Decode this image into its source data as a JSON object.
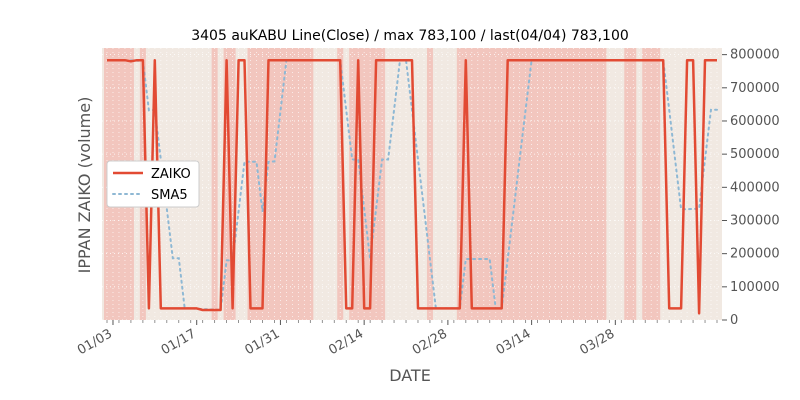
{
  "chart_data": {
    "type": "line",
    "title": "3405 auKABU Line(Close) / max 783,100 / last(04/04) 783,100",
    "xlabel": "DATE",
    "ylabel": "IPPAN ZAIKO (volume)",
    "ylim": [
      0,
      820000
    ],
    "yticks": [
      {
        "value": 0,
        "label": "0"
      },
      {
        "value": 100000,
        "label": "100000"
      },
      {
        "value": 200000,
        "label": "200000"
      },
      {
        "value": 300000,
        "label": "300000"
      },
      {
        "value": 400000,
        "label": "400000"
      },
      {
        "value": 500000,
        "label": "500000"
      },
      {
        "value": 600000,
        "label": "600000"
      },
      {
        "value": 700000,
        "label": "700000"
      },
      {
        "value": 800000,
        "label": "800000"
      }
    ],
    "xticks": [
      "01/03",
      "01/17",
      "01/31",
      "02/14",
      "02/28",
      "03/14",
      "03/28"
    ],
    "legend": {
      "placement": "left",
      "entries": [
        "ZAIKO",
        "SMA5"
      ]
    },
    "colors": {
      "zaiko": "#e24a33",
      "sma5": "#8eb8d4",
      "background": "#f1e9e2",
      "highlight": "#f2c6be"
    },
    "highlight_spans": [
      [
        0,
        4
      ],
      [
        6,
        6
      ],
      [
        18,
        18
      ],
      [
        20,
        21
      ],
      [
        24,
        34
      ],
      [
        39,
        39
      ],
      [
        41,
        46
      ],
      [
        54,
        54
      ],
      [
        59,
        83
      ],
      [
        87,
        88
      ],
      [
        90,
        92
      ]
    ],
    "series": [
      {
        "name": "ZAIKO",
        "values": [
          783100,
          783100,
          783100,
          783100,
          780000,
          783100,
          783100,
          35000,
          783100,
          35000,
          35000,
          35000,
          35000,
          35000,
          35000,
          35000,
          30000,
          30000,
          30000,
          30000,
          783100,
          35000,
          783100,
          783100,
          35000,
          35000,
          35000,
          783100,
          783100,
          783100,
          783100,
          783100,
          783100,
          783100,
          783100,
          783100,
          783100,
          783100,
          783100,
          783100,
          35000,
          35000,
          783100,
          35000,
          35000,
          783100,
          783100,
          783100,
          783100,
          783100,
          783100,
          783100,
          35000,
          35000,
          35000,
          35000,
          35000,
          35000,
          35000,
          35000,
          783100,
          35000,
          35000,
          35000,
          35000,
          35000,
          35000,
          783100,
          783100,
          783100,
          783100,
          783100,
          783100,
          783100,
          783100,
          783100,
          783100,
          783100,
          783100,
          783100,
          783100,
          783100,
          783100,
          783100,
          783100,
          783100,
          783100,
          783100,
          783100,
          783100,
          783100,
          783100,
          783100,
          783100,
          35000,
          35000,
          35000,
          783100,
          783100,
          20000,
          783100,
          783100,
          783100
        ]
      },
      {
        "name": "SMA5",
        "values": [
          null,
          null,
          null,
          null,
          782480,
          781860,
          781860,
          632280,
          633280,
          484500,
          335500,
          186400,
          186400,
          35000,
          35000,
          34000,
          33000,
          32000,
          31000,
          30000,
          180000,
          179000,
          328600,
          477400,
          476800,
          476800,
          327000,
          476800,
          478000,
          628000,
          783100,
          783100,
          783100,
          783100,
          783100,
          783100,
          783100,
          783100,
          783100,
          783100,
          633500,
          484000,
          484000,
          335000,
          185000,
          335000,
          484000,
          484000,
          634000,
          783100,
          783100,
          634000,
          484500,
          334900,
          185500,
          35000,
          35000,
          35000,
          35000,
          35000,
          184000,
          184000,
          184000,
          184000,
          184000,
          35000,
          35000,
          184000,
          334000,
          484000,
          634000,
          783100,
          783100,
          783100,
          783100,
          783100,
          783100,
          783100,
          783100,
          783100,
          783100,
          783100,
          783100,
          783100,
          783100,
          783100,
          783100,
          783100,
          783100,
          783100,
          783100,
          783100,
          783100,
          783100,
          634000,
          484000,
          334000,
          334000,
          335000,
          335000,
          484000,
          634000,
          634000
        ]
      }
    ]
  }
}
